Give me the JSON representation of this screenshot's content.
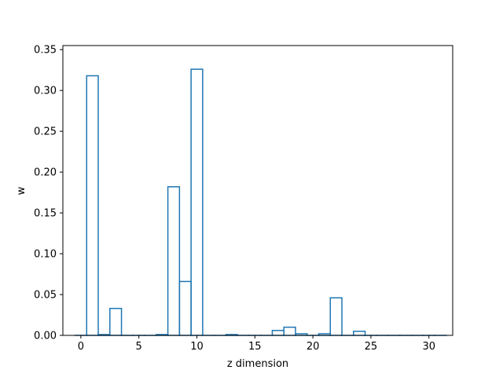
{
  "chart_data": {
    "type": "bar",
    "style": "step-outline",
    "xlabel": "z dimension",
    "ylabel": "w",
    "xlim": [
      -1.55,
      32.05
    ],
    "ylim": [
      0,
      0.355
    ],
    "xticks": [
      0,
      5,
      10,
      15,
      20,
      25,
      30
    ],
    "xtick_labels": [
      "0",
      "5",
      "10",
      "15",
      "20",
      "25",
      "30"
    ],
    "yticks": [
      0.0,
      0.05,
      0.1,
      0.15,
      0.2,
      0.25,
      0.3,
      0.35
    ],
    "ytick_labels": [
      "0.00",
      "0.05",
      "0.10",
      "0.15",
      "0.20",
      "0.25",
      "0.30",
      "0.35"
    ],
    "grid": false,
    "color": "#1f77b4",
    "x": [
      0,
      1,
      2,
      3,
      4,
      5,
      6,
      7,
      8,
      9,
      10,
      11,
      12,
      13,
      14,
      15,
      16,
      17,
      18,
      19,
      20,
      21,
      22,
      23,
      24,
      25,
      26,
      27,
      28,
      29,
      30,
      31
    ],
    "values": [
      0.0,
      0.318,
      0.001,
      0.033,
      0.0,
      0.0,
      0.0,
      0.001,
      0.182,
      0.066,
      0.326,
      0.0,
      0.0,
      0.001,
      0.0,
      0.0,
      0.0,
      0.006,
      0.01,
      0.002,
      0.0,
      0.002,
      0.046,
      0.0,
      0.005,
      0.0,
      0.0,
      0.0,
      0.0,
      0.0,
      0.0,
      0.0
    ]
  }
}
